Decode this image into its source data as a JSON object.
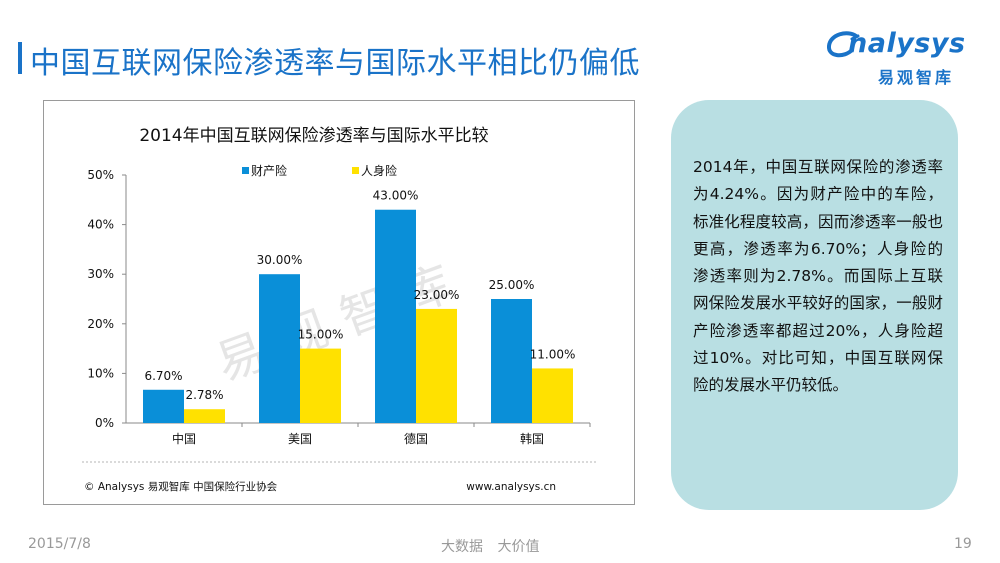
{
  "page": {
    "title": "中国互联网保险渗透率与国际水平相比仍偏低"
  },
  "logo": {
    "name": "nalysys",
    "subtitle": "易观智库",
    "color": "#1a73c8"
  },
  "chart_data": {
    "type": "bar",
    "title": "2014年中国互联网保险渗透率与国际水平比较",
    "categories": [
      "中国",
      "美国",
      "德国",
      "韩国"
    ],
    "series": [
      {
        "name": "财产险",
        "color": "#0a8fd8",
        "values": [
          6.7,
          30.0,
          43.0,
          25.0
        ],
        "labels": [
          "6.70%",
          "30.00%",
          "43.00%",
          "25.00%"
        ]
      },
      {
        "name": "人身险",
        "color": "#ffe100",
        "values": [
          2.78,
          15.0,
          23.0,
          11.0
        ],
        "labels": [
          "2.78%",
          "15.00%",
          "23.00%",
          "11.00%"
        ]
      }
    ],
    "ylim": [
      0,
      50
    ],
    "yticks": [
      "0%",
      "10%",
      "20%",
      "30%",
      "40%",
      "50%"
    ],
    "legend": "top-center",
    "grid": false,
    "watermark": "易观智库",
    "source": "© Analysys 易观智库 中国保险行业协会",
    "url": "www.analysys.cn"
  },
  "note": {
    "text": "2014年，中国互联网保险的渗透率为4.24%。因为财产险中的车险，标准化程度较高，因而渗透率一般也更高，渗透率为6.70%；人身险的渗透率则为2.78%。而国际上互联网保险发展水平较好的国家，一般财产险渗透率都超过20%，人身险超过10%。对比可知，中国互联网保险的发展水平仍较低。"
  },
  "footer": {
    "date": "2015/7/8",
    "center": "大数据 大价值",
    "page": "19"
  }
}
